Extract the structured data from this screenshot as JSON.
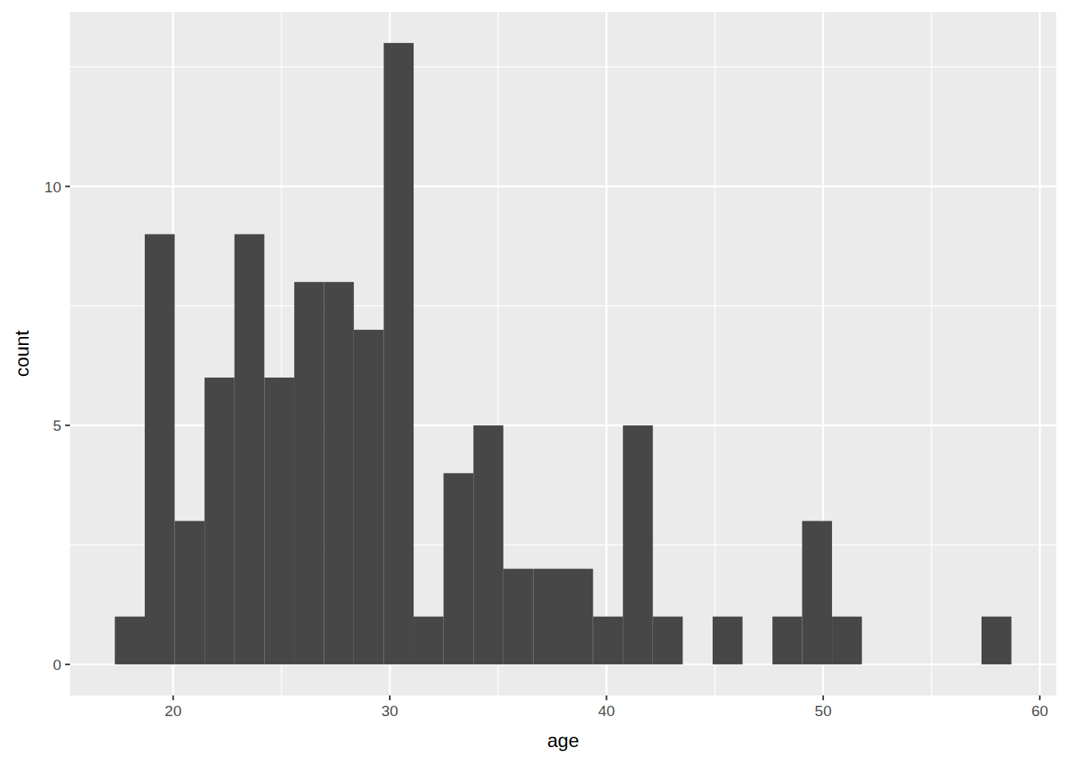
{
  "chart_data": {
    "type": "histogram",
    "x_label": "age",
    "y_label": "count",
    "bins": [
      17.31,
      18.69,
      20.07,
      21.45,
      22.83,
      24.21,
      25.59,
      26.97,
      28.34,
      29.72,
      31.1,
      32.48,
      33.86,
      35.24,
      36.62,
      38.0,
      39.38,
      40.76,
      42.14,
      43.52,
      44.9,
      46.28,
      47.66,
      49.03,
      50.41,
      51.79,
      53.17,
      54.55,
      55.93,
      57.31,
      58.69
    ],
    "values": [
      1,
      9,
      3,
      6,
      9,
      6,
      8,
      8,
      7,
      13,
      1,
      4,
      5,
      2,
      2,
      2,
      1,
      5,
      1,
      0,
      1,
      0,
      1,
      3,
      1,
      0,
      0,
      0,
      0,
      1
    ],
    "color": "#474747",
    "xlim": [
      15.24,
      60.76
    ],
    "xticks": [
      20,
      30,
      40,
      50,
      60
    ],
    "ylim": [
      -0.65,
      13.65
    ],
    "yticks": [
      0,
      5,
      10
    ],
    "grid": true
  }
}
